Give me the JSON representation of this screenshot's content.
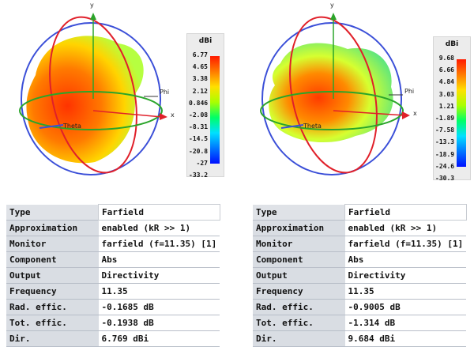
{
  "left": {
    "colorbar": {
      "unit": "dBi",
      "ticks": [
        "6.77",
        "4.65",
        "3.38",
        "2.12",
        "0.846",
        "-2.08",
        "-8.31",
        "-14.5",
        "-20.8",
        "-27",
        "-33.2"
      ]
    },
    "axes": {
      "y": "y",
      "x": "x",
      "phi": "Phi",
      "theta": "Theta"
    },
    "props": [
      {
        "key": "Type",
        "value": "Farfield"
      },
      {
        "key": "Approximation",
        "value": "enabled (kR >> 1)"
      },
      {
        "key": "Monitor",
        "value": "farfield (f=11.35) [1]"
      },
      {
        "key": "Component",
        "value": "Abs"
      },
      {
        "key": "Output",
        "value": "Directivity"
      },
      {
        "key": "Frequency",
        "value": "11.35"
      },
      {
        "key": "Rad. effic.",
        "value": "-0.1685 dB"
      },
      {
        "key": "Tot. effic.",
        "value": "-0.1938 dB"
      },
      {
        "key": "Dir.",
        "value": "6.769 dBi"
      }
    ]
  },
  "right": {
    "colorbar": {
      "unit": "dBi",
      "ticks": [
        "9.68",
        "6.66",
        "4.84",
        "3.03",
        "1.21",
        "-1.89",
        "-7.58",
        "-13.3",
        "-18.9",
        "-24.6",
        "-30.3"
      ]
    },
    "axes": {
      "y": "y",
      "x": "x",
      "phi": "Phi",
      "theta": "Theta"
    },
    "props": [
      {
        "key": "Type",
        "value": "Farfield"
      },
      {
        "key": "Approximation",
        "value": "enabled (kR >> 1)"
      },
      {
        "key": "Monitor",
        "value": "farfield (f=11.35) [1]"
      },
      {
        "key": "Component",
        "value": "Abs"
      },
      {
        "key": "Output",
        "value": "Directivity"
      },
      {
        "key": "Frequency",
        "value": "11.35"
      },
      {
        "key": "Rad. effic.",
        "value": "-0.9005 dB"
      },
      {
        "key": "Tot. effic.",
        "value": "-1.314 dB"
      },
      {
        "key": "Dir.",
        "value": "9.684 dBi"
      }
    ]
  }
}
